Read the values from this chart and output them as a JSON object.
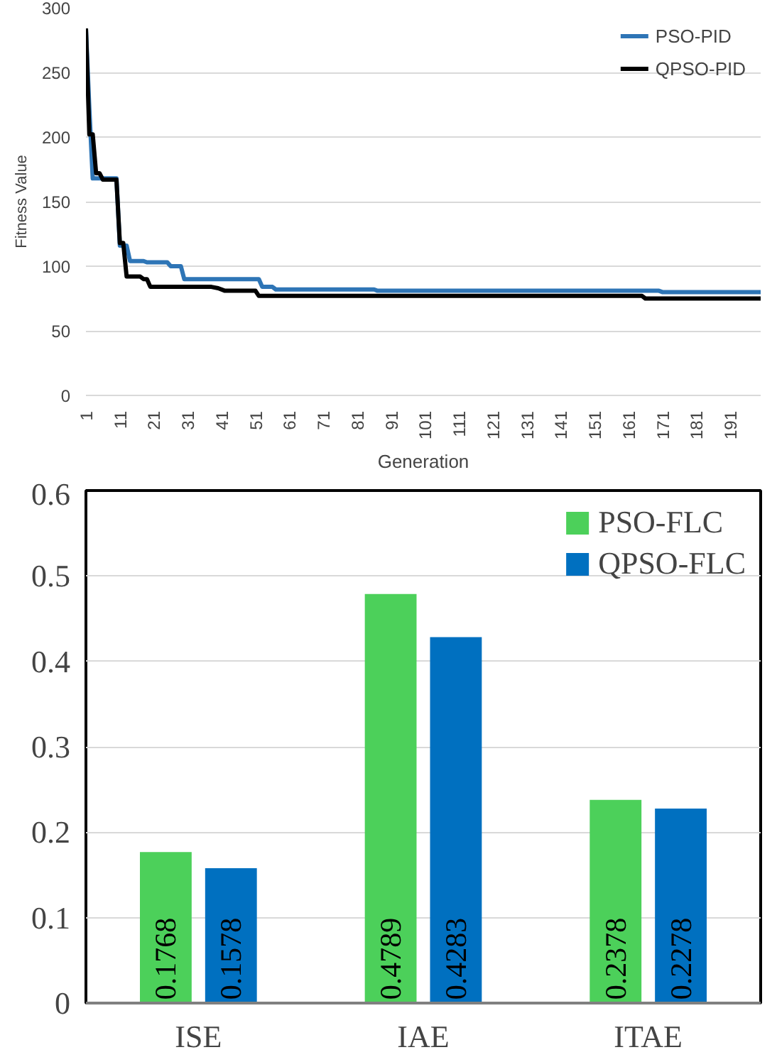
{
  "chart_data": [
    {
      "type": "line",
      "xlabel": "Generation",
      "ylabel": "Fitness Value",
      "xlim": [
        1,
        200
      ],
      "ylim": [
        0,
        300
      ],
      "xticks": [
        1,
        11,
        21,
        31,
        41,
        51,
        61,
        71,
        81,
        91,
        101,
        111,
        121,
        131,
        141,
        151,
        161,
        171,
        181,
        191
      ],
      "yticks": [
        0,
        50,
        100,
        150,
        200,
        250,
        300
      ],
      "grid": "y",
      "legend": "top right",
      "series": [
        {
          "name": "PSO-PID",
          "color": "#2e75b6",
          "x": [
            1,
            2,
            3,
            10,
            11,
            13,
            14,
            18,
            19,
            25,
            26,
            29,
            30,
            52,
            53,
            56,
            57,
            86,
            87,
            170,
            171,
            200
          ],
          "values": [
            284,
            222,
            168,
            168,
            116,
            116,
            104,
            104,
            103,
            103,
            100,
            100,
            90,
            90,
            84,
            84,
            82,
            82,
            81,
            81,
            80,
            80
          ]
        },
        {
          "name": "QPSO-PID",
          "color": "#000000",
          "x": [
            1,
            2,
            3,
            4,
            5,
            6,
            10,
            11,
            12,
            13,
            17,
            18,
            19,
            20,
            38,
            40,
            42,
            51,
            52,
            165,
            166,
            200
          ],
          "values": [
            284,
            202,
            202,
            172,
            172,
            167,
            167,
            118,
            118,
            92,
            92,
            90,
            90,
            84,
            84,
            83,
            81,
            81,
            77,
            77,
            75,
            75
          ]
        }
      ]
    },
    {
      "type": "bar",
      "categories": [
        "ISE",
        "IAE",
        "ITAE"
      ],
      "ylim": [
        0,
        0.6
      ],
      "yticks": [
        0,
        0.1,
        0.2,
        0.3,
        0.4,
        0.5,
        0.6
      ],
      "grid": "y",
      "legend": "top right",
      "data_labels": true,
      "series": [
        {
          "name": "PSO-FLC",
          "color": "#4cd05a",
          "values": [
            0.1768,
            0.4789,
            0.2378
          ]
        },
        {
          "name": "QPSO-FLC",
          "color": "#0070c0",
          "values": [
            0.1578,
            0.4283,
            0.2278
          ]
        }
      ]
    }
  ]
}
